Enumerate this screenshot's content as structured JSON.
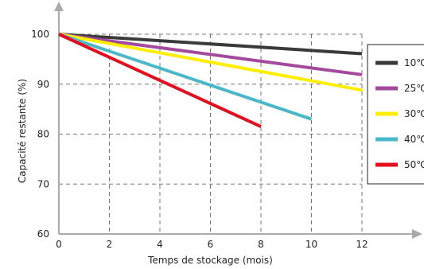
{
  "chart_data": {
    "type": "line",
    "title": "",
    "xlabel": "Temps de stockage (mois)",
    "ylabel": "Capacité restante (%)",
    "xlim": [
      0,
      12
    ],
    "ylim": [
      60,
      100
    ],
    "xticks": [
      0,
      2,
      4,
      6,
      8,
      10,
      12
    ],
    "yticks": [
      60,
      70,
      80,
      90,
      100
    ],
    "grid": true,
    "legend_position": "right",
    "series": [
      {
        "name": "10℃",
        "color": "#3a3a3a",
        "x": [
          0,
          12
        ],
        "y": [
          100,
          96.1
        ]
      },
      {
        "name": "25℃",
        "color": "#a44a9c",
        "x": [
          0,
          12
        ],
        "y": [
          100,
          91.9
        ]
      },
      {
        "name": "30℃",
        "color": "#ffee00",
        "x": [
          0,
          12
        ],
        "y": [
          100,
          88.8
        ]
      },
      {
        "name": "40℃",
        "color": "#4ab8c8",
        "x": [
          0,
          10
        ],
        "y": [
          100,
          83.0
        ]
      },
      {
        "name": "50℃",
        "color": "#e01020",
        "x": [
          0,
          8
        ],
        "y": [
          100,
          81.5
        ]
      }
    ]
  }
}
